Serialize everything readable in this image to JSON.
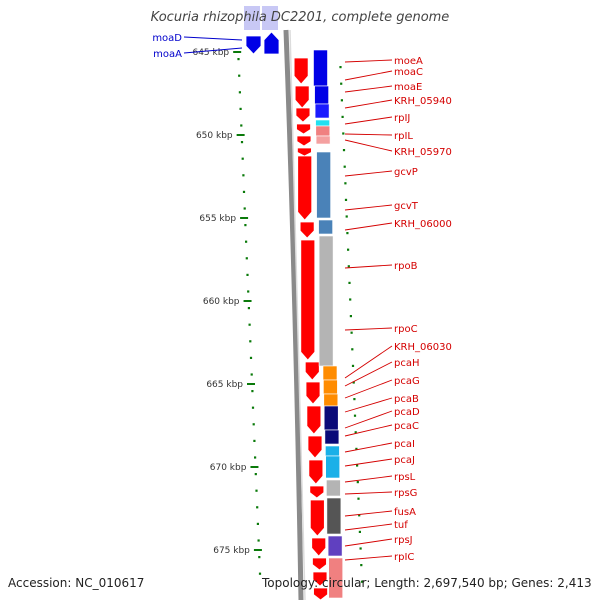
{
  "title": "Kocuria rhizophila DC2201, complete genome",
  "footer": {
    "accession": "Accession: NC_010617",
    "summary": "Topology: circular; Length: 2,697,540 bp; Genes: 2,413"
  },
  "colors": {
    "backbone": "#8a8a8a",
    "tick": "#0a7a0a",
    "red_label": "#d40000",
    "blue_label": "#0000cc"
  },
  "kbp_labels": [
    "645 kbp",
    "650 kbp",
    "655 kbp",
    "660 kbp",
    "665 kbp",
    "670 kbp",
    "675 kbp"
  ],
  "left_genes": [
    {
      "label": "moaD"
    },
    {
      "label": "moaA"
    }
  ],
  "right_genes": [
    {
      "label": "moeA"
    },
    {
      "label": "moaC"
    },
    {
      "label": "moaE"
    },
    {
      "label": "KRH_05940"
    },
    {
      "label": "rpIJ"
    },
    {
      "label": "rpIL"
    },
    {
      "label": "KRH_05970"
    },
    {
      "label": "gcvP"
    },
    {
      "label": "gcvT"
    },
    {
      "label": "KRH_06000"
    },
    {
      "label": "rpoB"
    },
    {
      "label": "rpoC"
    },
    {
      "label": "KRH_06030"
    },
    {
      "label": "pcaH"
    },
    {
      "label": "pcaG"
    },
    {
      "label": "pcaB"
    },
    {
      "label": "pcaD"
    },
    {
      "label": "pcaC"
    },
    {
      "label": "pcaI"
    },
    {
      "label": "pcaJ"
    },
    {
      "label": "rpsL"
    },
    {
      "label": "rpsG"
    },
    {
      "label": "fusA"
    },
    {
      "label": "tuf"
    },
    {
      "label": "rpsJ"
    },
    {
      "label": "rpIC"
    }
  ],
  "cog_colors": [
    "#0000e6",
    "#0000e6",
    "#1a1aff",
    "#22e0f0",
    "#f08080",
    "#f4a0a0",
    "#ffffff",
    "#4a82b8",
    "#4a82b8",
    "#b4b4b4",
    "#ff8c00",
    "#ff8c00",
    "#ff8c00",
    "#0a0a78",
    "#0a0a78",
    "#1ab0e8",
    "#1ab0e8",
    "#b4b4b4",
    "#555555",
    "#6040c0",
    "#f08080",
    "#f08080",
    "#f08080",
    "#f08080",
    "#f08080",
    "#f08080"
  ]
}
